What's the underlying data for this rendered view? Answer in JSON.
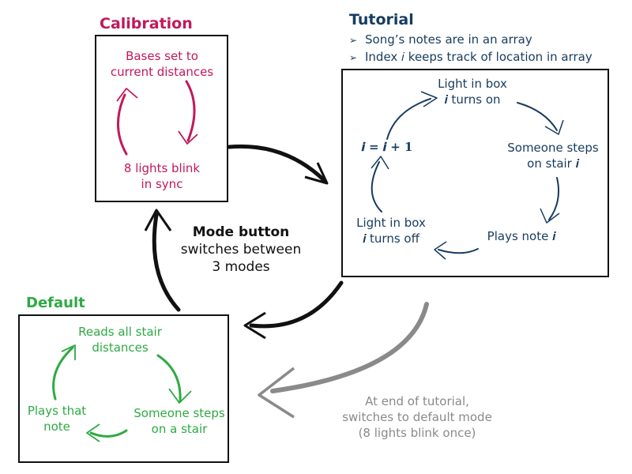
{
  "colors": {
    "calibration": "#c2185b",
    "tutorial": "#173c5f",
    "default": "#2eaa43",
    "transition": "#8a8a8a",
    "mode": "#111111"
  },
  "calibration": {
    "title": "Calibration",
    "step1": [
      "Bases set to",
      "current distances"
    ],
    "step2": [
      "8 lights blink",
      "in sync"
    ]
  },
  "tutorial": {
    "title": "Tutorial",
    "bullet_icon": "arrowhead-bullet-icon",
    "bullets": [
      "Song’s notes are in an array",
      "Index 𝑖 keeps track of location in array"
    ],
    "cycle": {
      "light_on": [
        "Light in box",
        "𝒊 turns on"
      ],
      "steps": [
        "Someone steps",
        "on stair 𝒊"
      ],
      "plays": "Plays note 𝒊",
      "light_off": [
        "Light in box",
        "𝒊 turns off"
      ],
      "increment": "𝒊 = 𝒊 + 𝟏"
    }
  },
  "default_mode": {
    "title": "Default",
    "reads": [
      "Reads all stair",
      "distances"
    ],
    "steps": [
      "Someone steps",
      "on a stair"
    ],
    "plays": [
      "Plays that",
      "note"
    ]
  },
  "mode_button": {
    "title": "Mode button",
    "lines": [
      "switches between",
      "3 modes"
    ]
  },
  "end_of_tutorial": {
    "lines": [
      "At end of tutorial,",
      "switches to default mode",
      "(8 lights blink once)"
    ]
  }
}
